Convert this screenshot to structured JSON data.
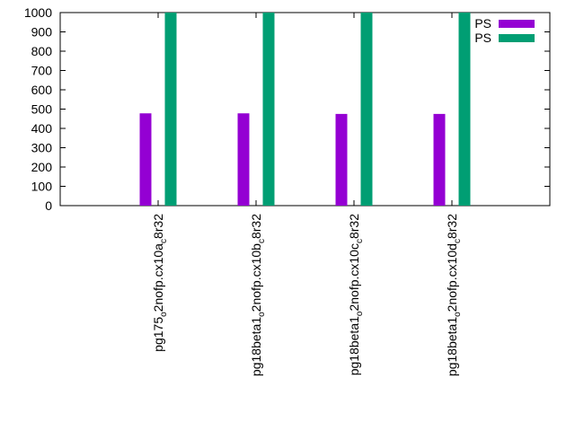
{
  "chart_data": {
    "type": "bar",
    "title": "",
    "xlabel": "",
    "ylabel": "",
    "ylim": [
      0,
      1000
    ],
    "yticks": [
      0,
      100,
      200,
      300,
      400,
      500,
      600,
      700,
      800,
      900,
      1000
    ],
    "grid": false,
    "legend_position": "top-right",
    "categories": [
      {
        "main": "pg175",
        "sub1": "o",
        "mid": "2nofp.cx10a",
        "sub2": "c",
        "tail": "8r32"
      },
      {
        "main": "pg18beta1",
        "sub1": "o",
        "mid": "2nofp.cx10b",
        "sub2": "c",
        "tail": "8r32"
      },
      {
        "main": "pg18beta1",
        "sub1": "o",
        "mid": "2nofp.cx10c",
        "sub2": "c",
        "tail": "8r32"
      },
      {
        "main": "pg18beta1",
        "sub1": "o",
        "mid": "2nofp.cx10d",
        "sub2": "c",
        "tail": "8r32"
      }
    ],
    "series": [
      {
        "name": "PS",
        "color": "#9400d3",
        "values": [
          478,
          478,
          475,
          475
        ]
      },
      {
        "name": "PS",
        "color": "#009e73",
        "values": [
          1000,
          1000,
          1000,
          1000
        ]
      }
    ]
  }
}
